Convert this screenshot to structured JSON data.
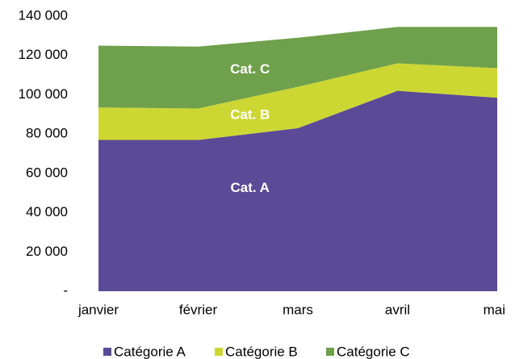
{
  "chart_data": {
    "type": "stacked_area",
    "categories": [
      "janvier",
      "février",
      "mars",
      "avril",
      "mai"
    ],
    "series": [
      {
        "name": "Catégorie A",
        "label": "Cat. A",
        "color": "#5b4a96",
        "values": [
          77000,
          77000,
          83000,
          102000,
          98500
        ]
      },
      {
        "name": "Catégorie B",
        "label": "Cat. B",
        "color": "#cdd733",
        "values": [
          16500,
          16000,
          21000,
          14000,
          15000
        ]
      },
      {
        "name": "Catégorie C",
        "label": "Cat. C",
        "color": "#6fa14c",
        "values": [
          31500,
          31500,
          25000,
          18500,
          21000
        ]
      }
    ],
    "ylim": [
      0,
      140000
    ],
    "yticks": [
      {
        "value": 0,
        "label": "-"
      },
      {
        "value": 20000,
        "label": "20 000"
      },
      {
        "value": 40000,
        "label": "40 000"
      },
      {
        "value": 60000,
        "label": "60 000"
      },
      {
        "value": 80000,
        "label": "80 000"
      },
      {
        "value": 100000,
        "label": "100 000"
      },
      {
        "value": 120000,
        "label": "120 000"
      },
      {
        "value": 140000,
        "label": "140 000"
      }
    ],
    "grid": false,
    "legend": "bottom"
  }
}
